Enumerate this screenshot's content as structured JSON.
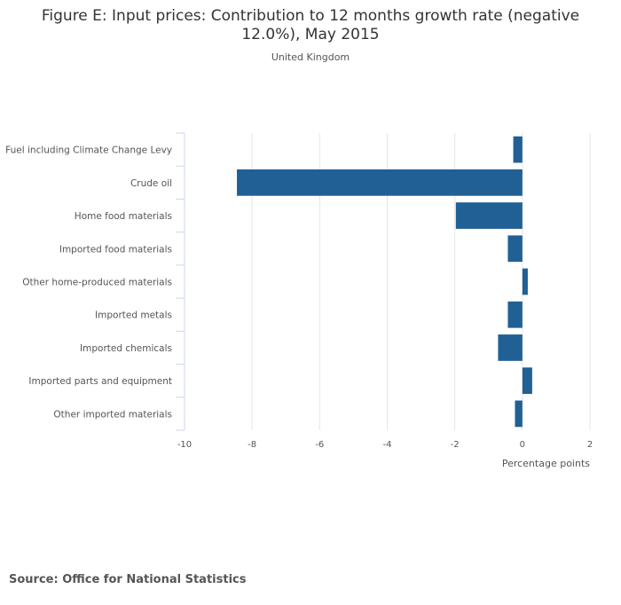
{
  "source": "Source: Office for National Statistics",
  "chart_data": {
    "type": "bar",
    "orientation": "horizontal",
    "title": "Figure E: Input prices: Contribution to 12 months growth rate (negative 12.0%), May 2015",
    "subtitle": "United Kingdom",
    "xlabel": "Percentage points",
    "ylabel": "",
    "xlim": [
      -10,
      2
    ],
    "xticks": [
      -10,
      -8,
      -6,
      -4,
      -2,
      0,
      2
    ],
    "grid": true,
    "legend": "none",
    "bar_color": "#206095",
    "categories": [
      "Fuel including Climate Change Levy",
      "Crude oil",
      "Home food materials",
      "Imported food materials",
      "Other home-produced materials",
      "Imported metals",
      "Imported chemicals",
      "Imported parts and equipment",
      "Other imported materials"
    ],
    "values": [
      -0.27,
      -8.45,
      -1.97,
      -0.43,
      0.16,
      -0.43,
      -0.72,
      0.29,
      -0.22
    ]
  }
}
